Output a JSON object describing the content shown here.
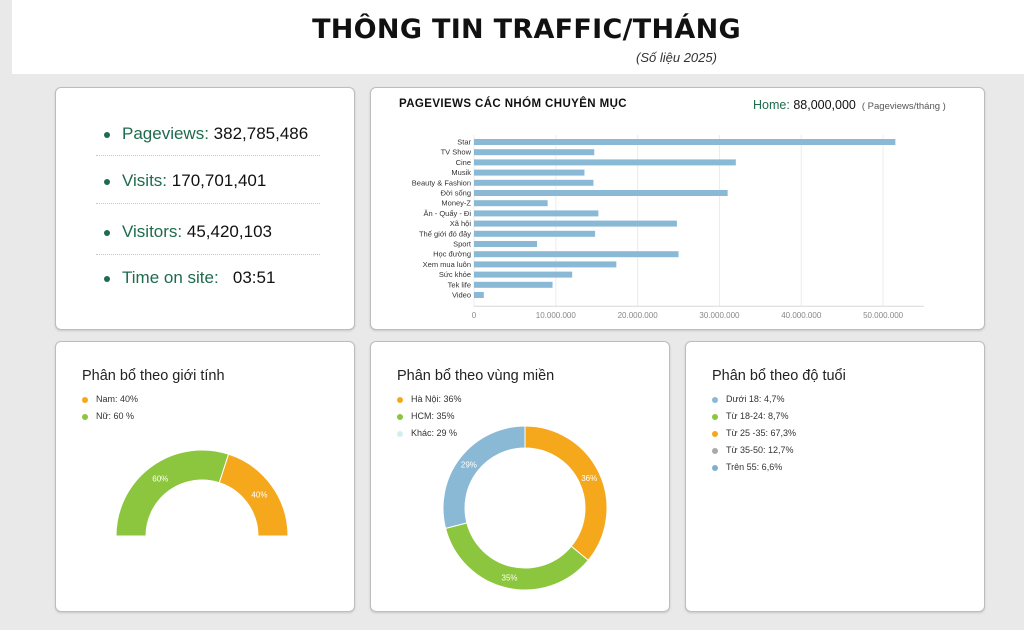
{
  "header": {
    "title": "THÔNG TIN TRAFFIC/THÁNG",
    "subtitle": "(Số liệu 2025)"
  },
  "stats": [
    {
      "label": "Pageviews:",
      "value": "382,785,486"
    },
    {
      "label": "Visits:",
      "value": "170,701,401"
    },
    {
      "label": "Visitors:",
      "value": "45,420,103"
    },
    {
      "label": "Time on site:",
      "value": "03:51"
    }
  ],
  "pageviews_panel": {
    "title": "PAGEVIEWS CÁC NHÓM CHUYÊN MỤC",
    "home_label": "Home:",
    "home_value": "88,000,000",
    "unit": "( Pageviews/tháng )"
  },
  "gender_panel": {
    "title": "Phân bổ theo giới tính",
    "legend": [
      {
        "label": "Nam: 40%",
        "color": "#f5a81c"
      },
      {
        "label": "Nữ: 60 %",
        "color": "#8cc63f"
      }
    ]
  },
  "region_panel": {
    "title": "Phân bổ theo vùng miền",
    "legend": [
      {
        "label": "Hà Nội: 36%",
        "color": "#f5a81c"
      },
      {
        "label": "HCM: 35%",
        "color": "#8cc63f"
      },
      {
        "label": "Khác: 29 %",
        "color": "#d4eef0"
      }
    ]
  },
  "age_panel": {
    "title": "Phân bổ theo độ tuổi",
    "legend": [
      {
        "label": "Dưới 18: 4,7%",
        "color": "#8ab9d6"
      },
      {
        "label": "Từ 18-24: 8,7%",
        "color": "#8cc63f"
      },
      {
        "label": "Từ 25 -35: 67,3%",
        "color": "#f5a81c"
      },
      {
        "label": "Từ 35-50: 12,7%",
        "color": "#aaaaaa"
      },
      {
        "label": "Trên 55: 6,6%",
        "color": "#7fb0d2"
      }
    ]
  },
  "chart_data": [
    {
      "type": "bar",
      "orientation": "horizontal",
      "title": "PAGEVIEWS CÁC NHÓM CHUYÊN MỤC",
      "categories": [
        "Star",
        "TV Show",
        "Cine",
        "Musik",
        "Beauty & Fashion",
        "Đời sống",
        "Money-Z",
        "Ăn - Quẩy - Đi",
        "Xã hội",
        "Thế giới đó đây",
        "Sport",
        "Học đường",
        "Xem mua luôn",
        "Sức khỏe",
        "Tek life",
        "Video"
      ],
      "values": [
        51500000,
        14700000,
        32000000,
        13500000,
        14600000,
        31000000,
        9000000,
        15200000,
        24800000,
        14800000,
        7700000,
        25000000,
        17400000,
        12000000,
        9600000,
        1200000
      ],
      "xlim": [
        0,
        55000000
      ],
      "xticks": [
        0,
        10000000,
        20000000,
        30000000,
        40000000,
        50000000
      ],
      "xtick_labels": [
        "0",
        "10.000.000",
        "20.000.000",
        "30.000.000",
        "40.000.000",
        "50.000.000"
      ],
      "color": "#8ab9d6",
      "grid": true
    },
    {
      "type": "pie",
      "title": "Phân bổ theo giới tính",
      "style": "semi-donut",
      "categories": [
        "Nữ",
        "Nam"
      ],
      "values": [
        60,
        40
      ],
      "labels": [
        "60%",
        "40%"
      ],
      "colors": [
        "#8cc63f",
        "#f5a81c"
      ]
    },
    {
      "type": "pie",
      "title": "Phân bổ theo vùng miền",
      "style": "donut",
      "categories": [
        "Hà Nội",
        "HCM",
        "Khác"
      ],
      "values": [
        36,
        35,
        29
      ],
      "labels": [
        "36%",
        "35%",
        "29%"
      ],
      "colors": [
        "#f5a81c",
        "#8cc63f",
        "#8ab9d6"
      ]
    }
  ]
}
